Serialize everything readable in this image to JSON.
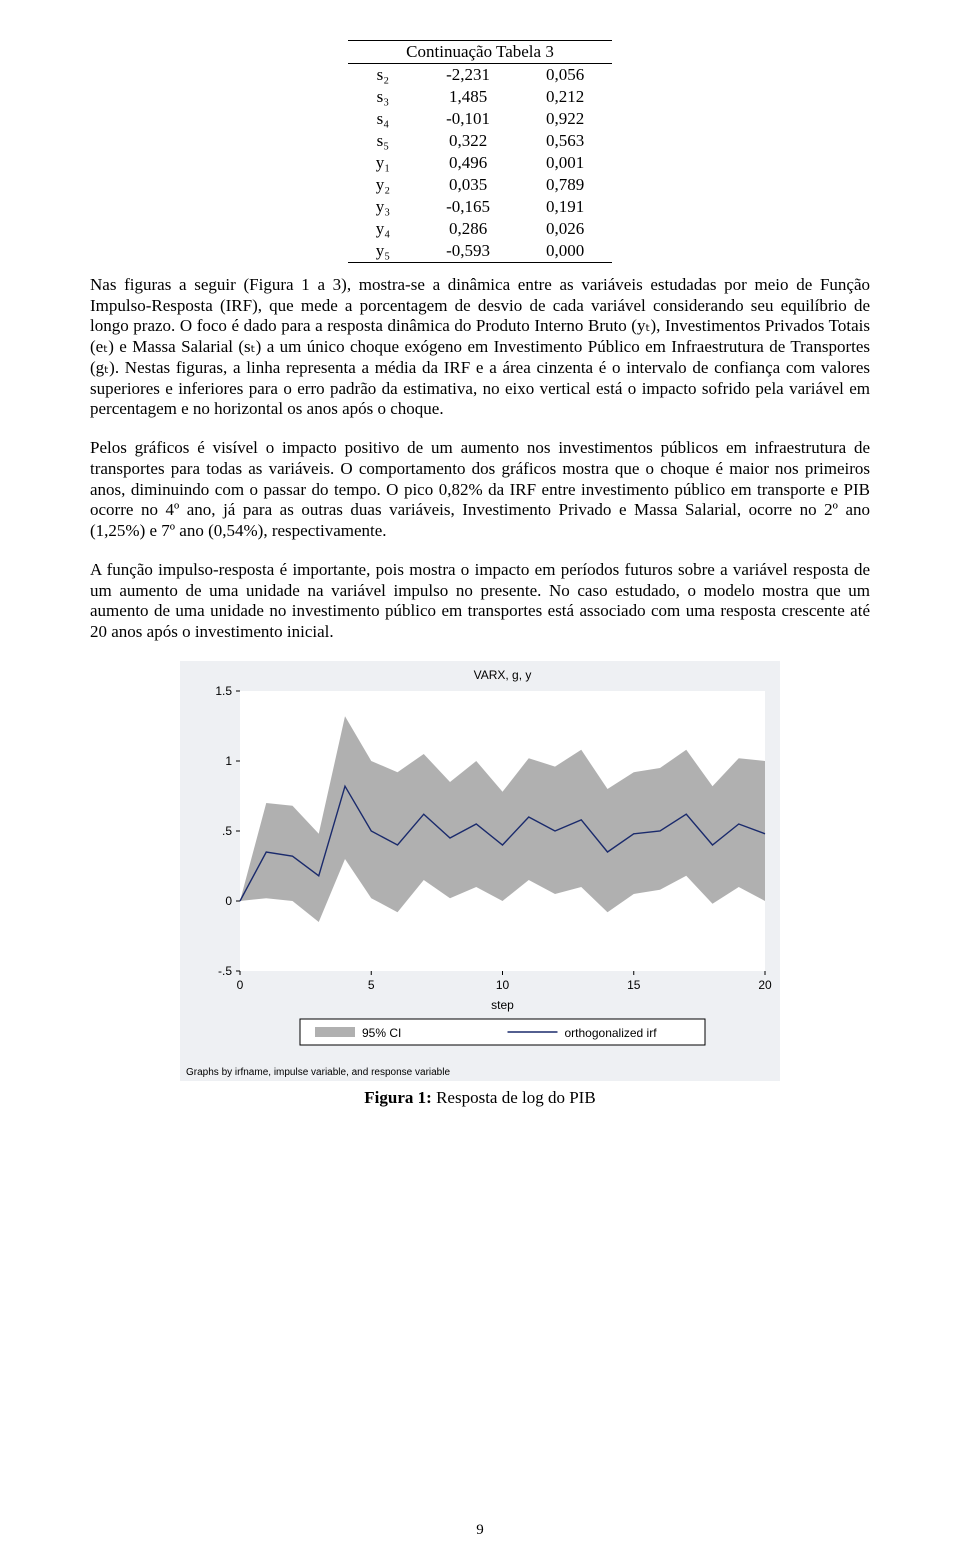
{
  "table": {
    "header_span": "Continuação Tabela 3",
    "rows": [
      {
        "label": "s₂",
        "v1": "-2,231",
        "v2": "0,056"
      },
      {
        "label": "s₃",
        "v1": "1,485",
        "v2": "0,212"
      },
      {
        "label": "s₄",
        "v1": "-0,101",
        "v2": "0,922"
      },
      {
        "label": "s₅",
        "v1": "0,322",
        "v2": "0,563"
      },
      {
        "label": "y₁",
        "v1": "0,496",
        "v2": "0,001"
      },
      {
        "label": "y₂",
        "v1": "0,035",
        "v2": "0,789"
      },
      {
        "label": "y₃",
        "v1": "-0,165",
        "v2": "0,191"
      },
      {
        "label": "y₄",
        "v1": "0,286",
        "v2": "0,026"
      },
      {
        "label": "y₅",
        "v1": "-0,593",
        "v2": "0,000"
      }
    ]
  },
  "paragraphs": {
    "p1": "Nas figuras a seguir (Figura 1 a 3), mostra-se a dinâmica entre as variáveis estudadas por meio de Função Impulso-Resposta (IRF), que mede a porcentagem de desvio de cada variável considerando seu equilíbrio de longo prazo. O foco é dado para a resposta dinâmica do Produto Interno Bruto (yₜ), Investimentos Privados Totais (eₜ) e Massa Salarial (sₜ) a um único choque exógeno em Investimento Público em Infraestrutura de Transportes (gₜ). Nestas figuras, a linha representa a média da IRF e a área cinzenta é o intervalo de confiança com valores superiores e inferiores para o erro padrão da estimativa, no eixo vertical está o impacto sofrido pela variável em percentagem e no horizontal os anos após o choque.",
    "p2": "Pelos gráficos é visível o impacto positivo de um aumento nos investimentos públicos em infraestrutura de transportes para todas as variáveis. O comportamento dos gráficos mostra que o choque é maior nos primeiros anos, diminuindo com o passar do tempo. O pico 0,82% da IRF entre investimento público em transporte e PIB ocorre no 4º ano, já para as outras duas variáveis, Investimento Privado e Massa Salarial, ocorre no 2º ano (1,25%) e 7º ano (0,54%), respectivamente.",
    "p3": "A função impulso-resposta é importante, pois mostra o impacto em períodos futuros sobre a variável resposta de um aumento de uma unidade na variável impulso no presente. No caso estudado, o modelo mostra que um aumento de uma unidade no investimento público em transportes está associado com uma resposta crescente até 20 anos após o investimento inicial."
  },
  "figure": {
    "title_line": "VARX, g, y",
    "xlabel": "step",
    "legend_ci": "95% CI",
    "legend_line": "orthogonalized irf",
    "footer_note": "Graphs by irfname, impulse variable, and response variable",
    "caption_bold": "Figura 1:",
    "caption_rest": " Resposta de log do PIB",
    "style": {
      "outer_bg": "#eef0f3",
      "plot_bg": "#ffffff",
      "ci_fill": "#b0b0b0",
      "line_color": "#1a2a6c",
      "line_width": 1.4,
      "axis_color": "#000000",
      "tick_color": "#000000",
      "title_fontsize": 12,
      "label_fontsize": 12,
      "tick_fontsize": 12,
      "footer_fontsize": 10,
      "legend_box_stroke": "#000000"
    },
    "xlim": [
      0,
      20
    ],
    "ylim": [
      -0.5,
      1.5
    ],
    "xticks": [
      0,
      5,
      10,
      15,
      20
    ],
    "yticks": [
      {
        "v": -0.5,
        "label": "-.5"
      },
      {
        "v": 0,
        "label": "0"
      },
      {
        "v": 0.5,
        "label": ".5"
      },
      {
        "v": 1,
        "label": "1"
      },
      {
        "v": 1.5,
        "label": "1.5"
      }
    ],
    "x": [
      0,
      1,
      2,
      3,
      4,
      5,
      6,
      7,
      8,
      9,
      10,
      11,
      12,
      13,
      14,
      15,
      16,
      17,
      18,
      19,
      20
    ],
    "ci_upper": [
      0.0,
      0.7,
      0.68,
      0.48,
      1.32,
      1.0,
      0.92,
      1.05,
      0.85,
      1.0,
      0.78,
      1.02,
      0.96,
      1.08,
      0.8,
      0.92,
      0.95,
      1.08,
      0.82,
      1.02,
      1.0
    ],
    "irf_line": [
      0.0,
      0.35,
      0.32,
      0.18,
      0.82,
      0.5,
      0.4,
      0.62,
      0.45,
      0.55,
      0.4,
      0.6,
      0.5,
      0.58,
      0.35,
      0.48,
      0.5,
      0.62,
      0.4,
      0.55,
      0.48
    ],
    "ci_lower": [
      0.0,
      0.02,
      0.0,
      -0.15,
      0.3,
      0.02,
      -0.08,
      0.15,
      0.02,
      0.1,
      0.0,
      0.15,
      0.05,
      0.1,
      -0.08,
      0.05,
      0.08,
      0.18,
      -0.02,
      0.1,
      0.0
    ]
  },
  "page_number": "9"
}
